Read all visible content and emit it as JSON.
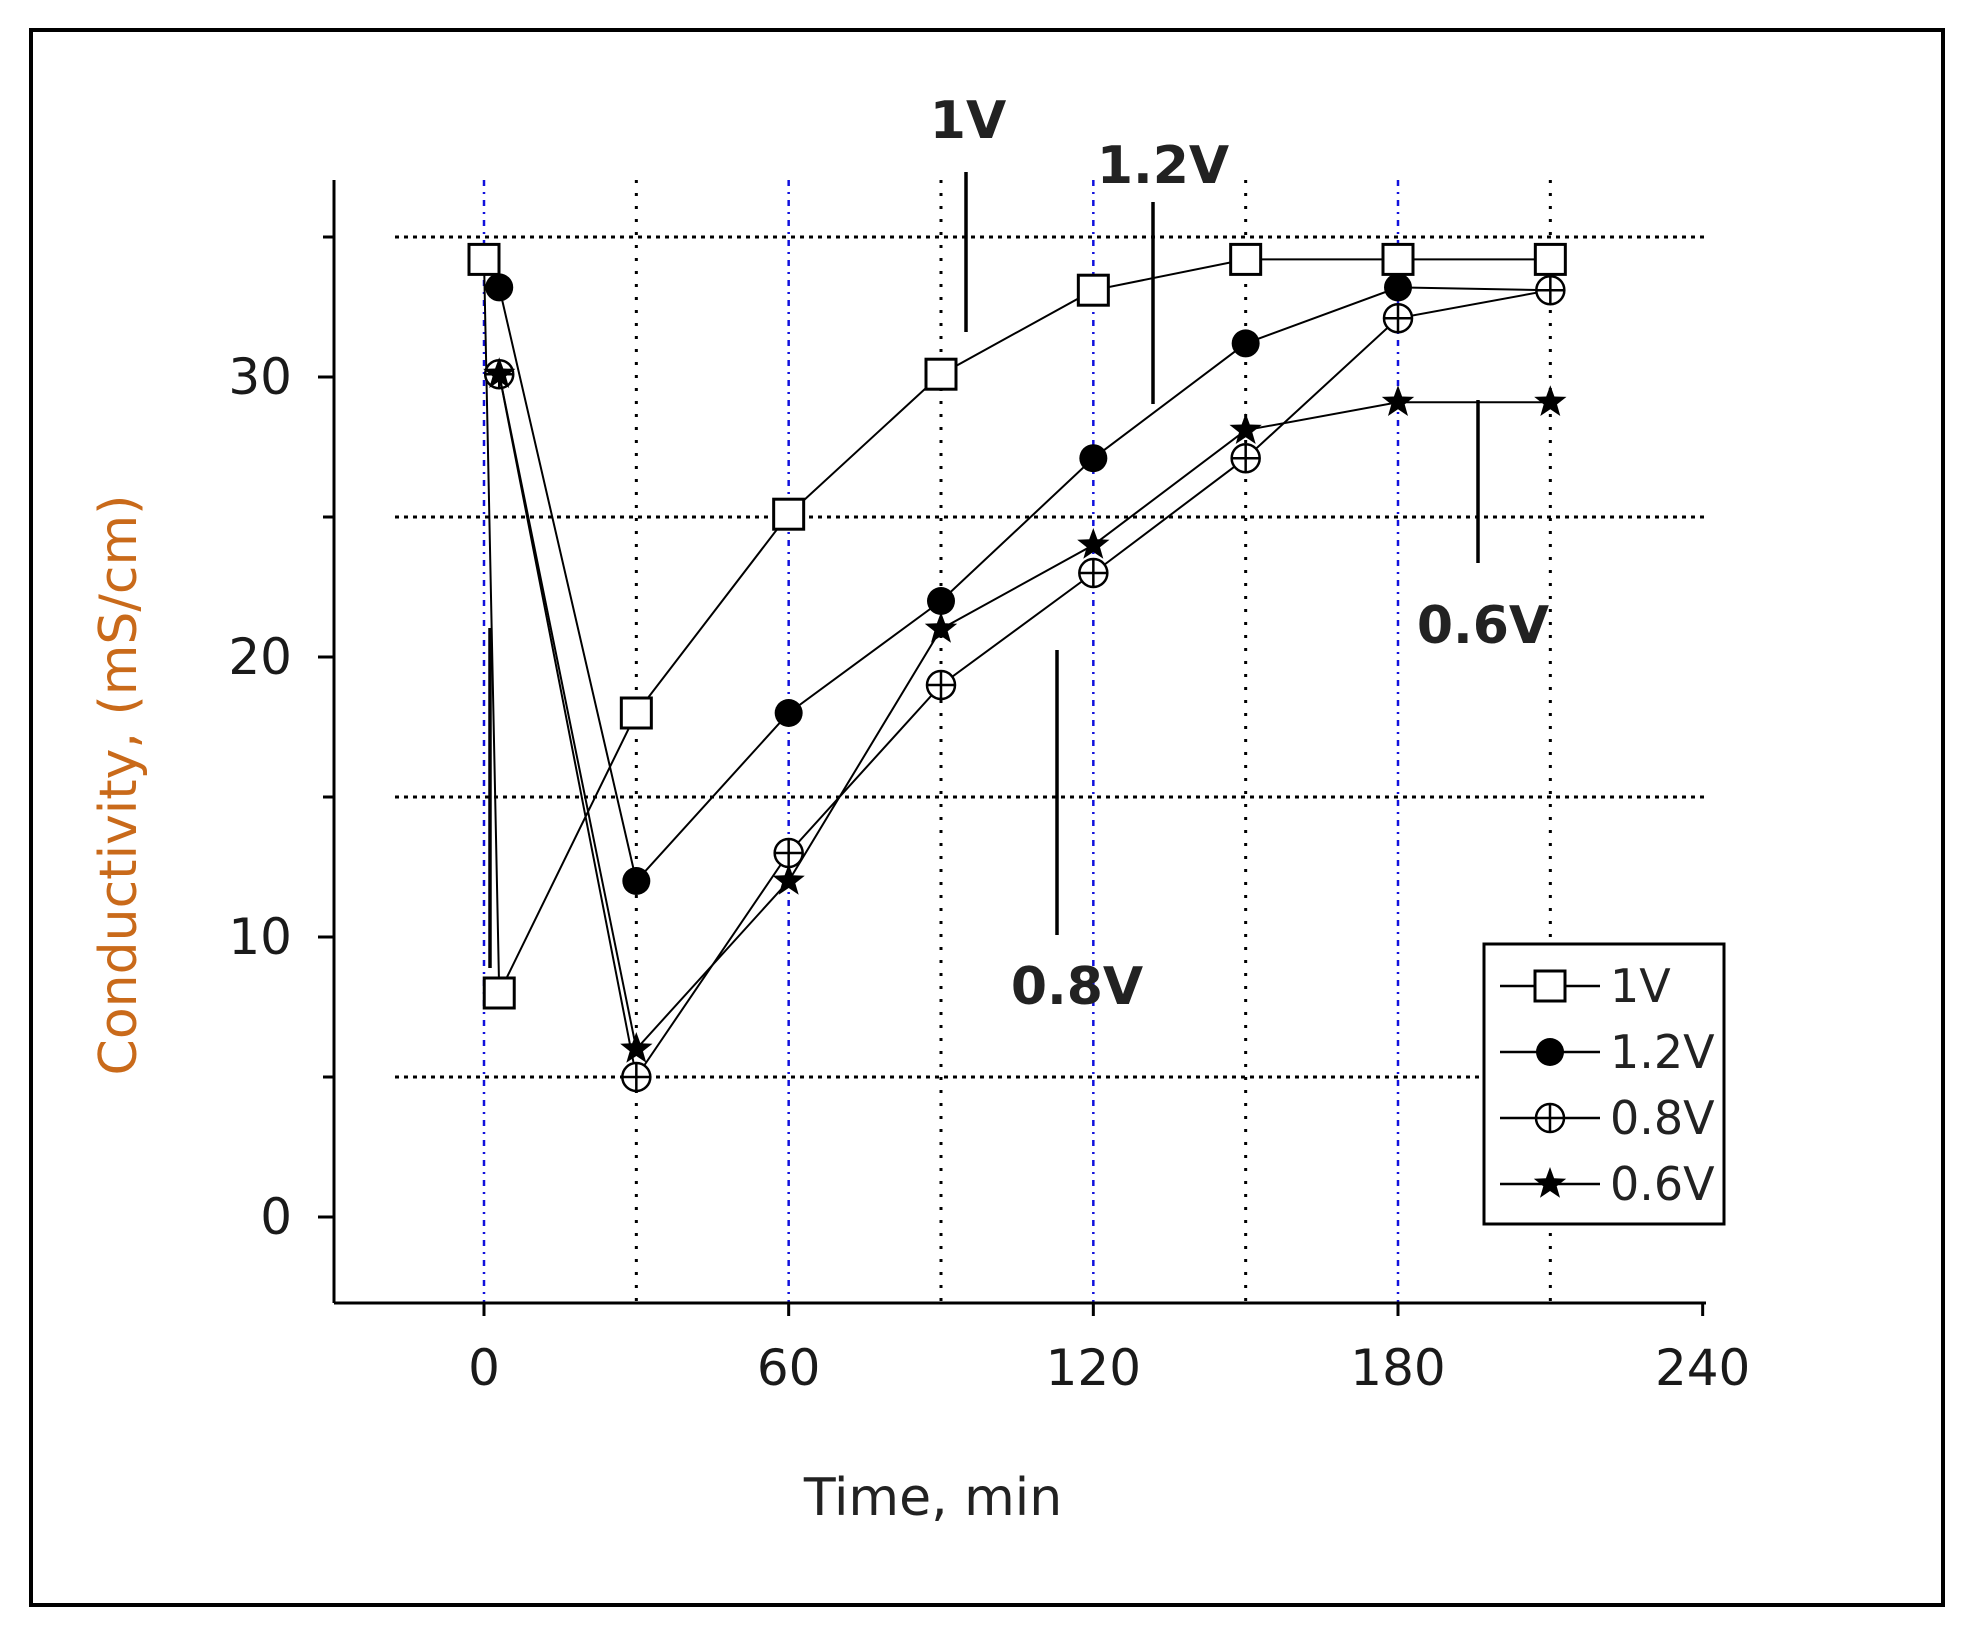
{
  "chart_data": {
    "type": "line",
    "xlabel": "Time, min",
    "ylabel": "Conductivity, (mS/cm)",
    "xlim": [
      -30,
      240
    ],
    "ylim": [
      -3,
      37
    ],
    "xticks": [
      0,
      60,
      120,
      180,
      240
    ],
    "yticks": [
      0,
      10,
      20,
      30
    ],
    "grid": true,
    "legend_position": "bottom-right",
    "series": [
      {
        "name": "1V",
        "marker": "square-open",
        "points": [
          [
            0,
            34.2
          ],
          [
            3,
            8
          ],
          [
            30,
            18
          ],
          [
            60,
            25.1
          ],
          [
            90,
            30.1
          ],
          [
            120,
            33.1
          ],
          [
            150,
            34.2
          ],
          [
            180,
            34.2
          ],
          [
            210,
            34.2
          ]
        ]
      },
      {
        "name": "1.2V",
        "marker": "circle-filled",
        "points": [
          [
            3,
            33.2
          ],
          [
            30,
            12
          ],
          [
            60,
            18
          ],
          [
            90,
            22
          ],
          [
            120,
            27.1
          ],
          [
            150,
            31.2
          ],
          [
            180,
            33.2
          ],
          [
            210,
            33.1
          ]
        ]
      },
      {
        "name": "0.8V",
        "marker": "circle-cross",
        "points": [
          [
            3,
            30.1
          ],
          [
            30,
            5
          ],
          [
            60,
            13
          ],
          [
            90,
            19
          ],
          [
            120,
            23
          ],
          [
            150,
            27.1
          ],
          [
            180,
            32.1
          ],
          [
            210,
            33.1
          ]
        ]
      },
      {
        "name": "0.6V",
        "marker": "star-filled",
        "points": [
          [
            3,
            30.1
          ],
          [
            30,
            6
          ],
          [
            60,
            12
          ],
          [
            90,
            21
          ],
          [
            120,
            24
          ],
          [
            150,
            28.1
          ],
          [
            180,
            29.1
          ],
          [
            210,
            29.1
          ]
        ]
      }
    ],
    "annotations": [
      {
        "text": "1V"
      },
      {
        "text": "1.2V"
      },
      {
        "text": "0.6V"
      },
      {
        "text": "0.8V"
      }
    ],
    "colors": {
      "axis_title": "#c96a1a",
      "major_grid": "#1010dd",
      "minor_grid": "#000000"
    }
  }
}
